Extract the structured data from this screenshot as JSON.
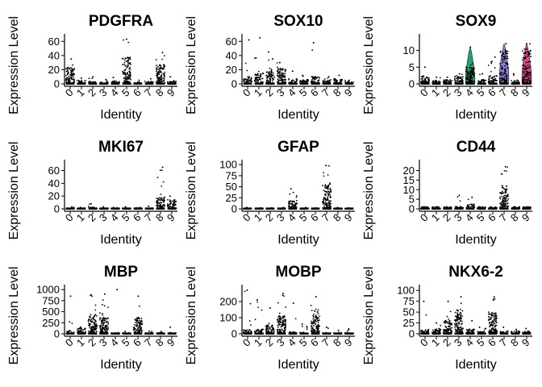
{
  "chart_data": [
    {
      "type": "violin",
      "title": "PDGFRA",
      "xlabel": "Identity",
      "ylabel": "Expression Level",
      "categories": [
        "0",
        "1",
        "2",
        "3",
        "4",
        "5",
        "6",
        "7",
        "8",
        "9"
      ],
      "ylim": [
        0,
        66
      ],
      "yticks": [
        0,
        20,
        40,
        60
      ],
      "max_values": [
        35,
        8,
        10,
        6,
        9,
        63,
        5,
        7,
        44,
        10
      ],
      "bulk_values": [
        18,
        4,
        3,
        2,
        4,
        30,
        2,
        3,
        22,
        3
      ]
    },
    {
      "type": "violin",
      "title": "SOX10",
      "xlabel": "Identity",
      "ylabel": "Expression Level",
      "categories": [
        "0",
        "1",
        "2",
        "3",
        "4",
        "5",
        "6",
        "7",
        "8",
        "9"
      ],
      "ylim": [
        0,
        66
      ],
      "yticks": [
        0,
        20,
        40,
        60
      ],
      "max_values": [
        62,
        65,
        45,
        30,
        18,
        12,
        58,
        10,
        12,
        5
      ],
      "bulk_values": [
        8,
        12,
        15,
        18,
        6,
        5,
        8,
        5,
        6,
        2
      ]
    },
    {
      "type": "violin",
      "title": "SOX9",
      "xlabel": "Identity",
      "ylabel": "Expression Level",
      "categories": [
        "0",
        "1",
        "2",
        "3",
        "4",
        "5",
        "6",
        "7",
        "8",
        "9"
      ],
      "ylim": [
        0,
        14
      ],
      "yticks": [
        0,
        5,
        10
      ],
      "max_values": [
        5,
        2,
        2,
        3,
        11,
        3,
        8,
        12,
        3,
        12
      ],
      "bulk_values": [
        2,
        1,
        1,
        2,
        4,
        1,
        2,
        8,
        1,
        8
      ],
      "fills": [
        "",
        "",
        "",
        "",
        "#21a36b",
        "",
        "",
        "#8a84d6",
        "",
        "#e0468a"
      ]
    },
    {
      "type": "violin",
      "title": "MKI67",
      "xlabel": "Identity",
      "ylabel": "Expression Level",
      "categories": [
        "0",
        "1",
        "2",
        "3",
        "4",
        "5",
        "6",
        "7",
        "8",
        "9"
      ],
      "ylim": [
        0,
        72
      ],
      "yticks": [
        0,
        20,
        40,
        60
      ],
      "max_values": [
        3,
        2,
        8,
        3,
        2,
        3,
        2,
        4,
        65,
        20
      ],
      "bulk_values": [
        1,
        1,
        2,
        1,
        1,
        1,
        1,
        1,
        15,
        12
      ]
    },
    {
      "type": "violin",
      "title": "GFAP",
      "xlabel": "Identity",
      "ylabel": "Expression Level",
      "categories": [
        "0",
        "1",
        "2",
        "3",
        "4",
        "5",
        "6",
        "7",
        "8",
        "9"
      ],
      "ylim": [
        0,
        104
      ],
      "yticks": [
        0,
        25,
        50,
        75,
        100
      ],
      "max_values": [
        3,
        2,
        2,
        3,
        45,
        3,
        2,
        98,
        3,
        2
      ],
      "bulk_values": [
        1,
        1,
        1,
        1,
        15,
        1,
        1,
        45,
        1,
        1
      ]
    },
    {
      "type": "violin",
      "title": "CD44",
      "xlabel": "Identity",
      "ylabel": "Expression Level",
      "categories": [
        "0",
        "1",
        "2",
        "3",
        "4",
        "5",
        "6",
        "7",
        "8",
        "9"
      ],
      "ylim": [
        0,
        24
      ],
      "yticks": [
        0,
        5,
        10,
        15,
        20
      ],
      "max_values": [
        1,
        1,
        1,
        7,
        6,
        1,
        1,
        22,
        1,
        1
      ],
      "bulk_values": [
        1,
        1,
        1,
        1,
        2,
        1,
        1,
        10,
        1,
        1
      ]
    },
    {
      "type": "violin",
      "title": "MBP",
      "xlabel": "Identity",
      "ylabel": "Expression Level",
      "categories": [
        "0",
        "1",
        "2",
        "3",
        "4",
        "5",
        "6",
        "7",
        "8",
        "9"
      ],
      "ylim": [
        0,
        1040
      ],
      "yticks": [
        0,
        250,
        500,
        750,
        1000
      ],
      "max_values": [
        850,
        150,
        880,
        900,
        1000,
        50,
        850,
        60,
        50,
        150
      ],
      "bulk_values": [
        60,
        100,
        350,
        300,
        20,
        20,
        300,
        20,
        20,
        20
      ]
    },
    {
      "type": "violin",
      "title": "MOBP",
      "xlabel": "Identity",
      "ylabel": "Expression Level",
      "categories": [
        "0",
        "1",
        "2",
        "3",
        "4",
        "5",
        "6",
        "7",
        "8",
        "9"
      ],
      "ylim": [
        0,
        285
      ],
      "yticks": [
        0,
        100,
        200
      ],
      "max_values": [
        270,
        210,
        160,
        250,
        190,
        60,
        230,
        40,
        20,
        30
      ],
      "bulk_values": [
        20,
        25,
        45,
        90,
        10,
        8,
        120,
        5,
        5,
        5
      ]
    },
    {
      "type": "violin",
      "title": "NKX6-2",
      "xlabel": "Identity",
      "ylabel": "Expression Level",
      "categories": [
        "0",
        "1",
        "2",
        "3",
        "4",
        "5",
        "6",
        "7",
        "8",
        "9"
      ],
      "ylim": [
        0,
        106
      ],
      "yticks": [
        0,
        25,
        50,
        75,
        100
      ],
      "max_values": [
        75,
        25,
        75,
        85,
        30,
        15,
        85,
        15,
        10,
        12
      ],
      "bulk_values": [
        8,
        10,
        25,
        45,
        10,
        5,
        40,
        5,
        5,
        5
      ]
    }
  ]
}
